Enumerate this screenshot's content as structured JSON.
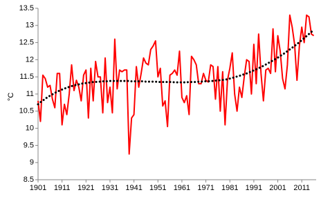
{
  "chart_data": {
    "type": "line",
    "y_label": "°C",
    "x": [
      1901,
      1902,
      1903,
      1904,
      1905,
      1906,
      1907,
      1908,
      1909,
      1910,
      1911,
      1912,
      1913,
      1914,
      1915,
      1916,
      1917,
      1918,
      1919,
      1920,
      1921,
      1922,
      1923,
      1924,
      1925,
      1926,
      1927,
      1928,
      1929,
      1930,
      1931,
      1932,
      1933,
      1934,
      1935,
      1936,
      1937,
      1938,
      1939,
      1940,
      1941,
      1942,
      1943,
      1944,
      1945,
      1946,
      1947,
      1948,
      1949,
      1950,
      1951,
      1952,
      1953,
      1954,
      1955,
      1956,
      1957,
      1958,
      1959,
      1960,
      1961,
      1962,
      1963,
      1964,
      1965,
      1966,
      1967,
      1968,
      1969,
      1970,
      1971,
      1972,
      1973,
      1974,
      1975,
      1976,
      1977,
      1978,
      1979,
      1980,
      1981,
      1982,
      1983,
      1984,
      1985,
      1986,
      1987,
      1988,
      1989,
      1990,
      1991,
      1992,
      1993,
      1994,
      1995,
      1996,
      1997,
      1998,
      1999,
      2000,
      2001,
      2002,
      2003,
      2004,
      2005,
      2006,
      2007,
      2008,
      2009,
      2010,
      2011,
      2012,
      2013,
      2014,
      2015,
      2016
    ],
    "series": [
      {
        "color": "#ff0000",
        "style": "solid",
        "values": [
          10.8,
          10.2,
          11.55,
          11.45,
          11.2,
          11.25,
          10.85,
          10.6,
          11.6,
          11.6,
          10.1,
          10.7,
          10.4,
          11.0,
          11.85,
          11.1,
          11.4,
          11.2,
          10.8,
          11.55,
          11.7,
          10.3,
          11.75,
          10.8,
          11.95,
          11.5,
          11.5,
          10.45,
          12.05,
          10.75,
          11.2,
          10.45,
          12.6,
          11.15,
          11.7,
          11.65,
          11.7,
          11.7,
          9.25,
          10.3,
          10.4,
          11.8,
          11.2,
          11.6,
          12.05,
          11.9,
          11.85,
          12.3,
          12.4,
          12.55,
          11.5,
          11.75,
          10.65,
          10.8,
          10.05,
          11.55,
          11.6,
          11.7,
          11.55,
          12.25,
          10.9,
          10.75,
          10.95,
          10.4,
          12.1,
          12.0,
          11.85,
          11.3,
          11.3,
          11.6,
          11.4,
          11.35,
          11.85,
          11.8,
          10.85,
          11.8,
          10.5,
          11.65,
          10.1,
          11.4,
          11.75,
          12.2,
          11.0,
          10.5,
          11.2,
          10.9,
          11.5,
          12.0,
          11.95,
          11.0,
          12.45,
          11.3,
          12.75,
          11.6,
          10.8,
          11.7,
          11.75,
          11.6,
          12.9,
          11.65,
          12.7,
          12.25,
          11.45,
          11.15,
          11.85,
          13.3,
          12.95,
          12.45,
          11.4,
          12.4,
          12.95,
          12.5,
          13.3,
          13.25,
          12.75,
          12.7
        ]
      },
      {
        "color": "#000000",
        "style": "dotted",
        "values": [
          10.7,
          10.76,
          10.81,
          10.86,
          10.91,
          10.95,
          10.99,
          11.03,
          11.07,
          11.1,
          11.13,
          11.16,
          11.18,
          11.21,
          11.23,
          11.25,
          11.27,
          11.28,
          11.3,
          11.31,
          11.32,
          11.33,
          11.34,
          11.35,
          11.35,
          11.36,
          11.36,
          11.37,
          11.37,
          11.37,
          11.38,
          11.38,
          11.38,
          11.38,
          11.38,
          11.38,
          11.38,
          11.38,
          11.38,
          11.37,
          11.37,
          11.37,
          11.37,
          11.37,
          11.37,
          11.36,
          11.36,
          11.36,
          11.36,
          11.36,
          11.35,
          11.35,
          11.35,
          11.35,
          11.35,
          11.35,
          11.35,
          11.34,
          11.34,
          11.34,
          11.34,
          11.34,
          11.34,
          11.35,
          11.35,
          11.35,
          11.35,
          11.36,
          11.36,
          11.37,
          11.37,
          11.37,
          11.38,
          11.38,
          11.39,
          11.4,
          11.4,
          11.41,
          11.42,
          11.43,
          11.45,
          11.47,
          11.49,
          11.51,
          11.53,
          11.55,
          11.58,
          11.6,
          11.63,
          11.66,
          11.69,
          11.72,
          11.75,
          11.79,
          11.82,
          11.86,
          11.9,
          11.94,
          11.98,
          12.02,
          12.06,
          12.11,
          12.15,
          12.2,
          12.25,
          12.3,
          12.35,
          12.4,
          12.46,
          12.51,
          12.57,
          12.63,
          12.69,
          12.75,
          12.81,
          12.87
        ]
      }
    ],
    "xlim": [
      1901,
      2017
    ],
    "xticks": [
      1901,
      1911,
      1921,
      1931,
      1941,
      1951,
      1961,
      1971,
      1981,
      1991,
      2001,
      2011
    ],
    "ylim": [
      8.5,
      13.5
    ],
    "yticks": [
      8.5,
      9,
      9.5,
      10,
      10.5,
      11,
      11.5,
      12,
      12.5,
      13,
      13.5
    ],
    "grid": false
  }
}
